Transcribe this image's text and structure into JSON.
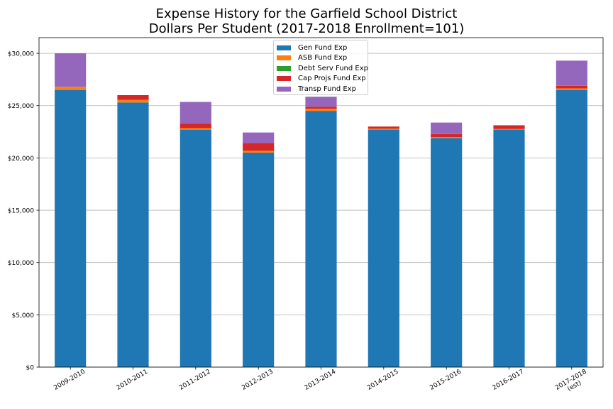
{
  "title": {
    "line1": "Expense History for the Garfield School District",
    "line2": "Dollars Per Student (2017-2018 Enrollment=101)"
  },
  "chart_data": {
    "type": "bar",
    "stacked": true,
    "categories": [
      "2009-2010",
      "2010-2011",
      "2011-2012",
      "2012-2013",
      "2013-2014",
      "2014-2015",
      "2015-2016",
      "2016-2017",
      "2017-2018"
    ],
    "category_sublabels": [
      "",
      "",
      "",
      "",
      "",
      "",
      "",
      "",
      "(est)"
    ],
    "series": [
      {
        "name": "Gen Fund Exp",
        "color": "#1f77b4",
        "values": [
          26500,
          25300,
          22700,
          20500,
          24500,
          22700,
          21900,
          22700,
          26500
        ]
      },
      {
        "name": "ASB Fund Exp",
        "color": "#ff7f0e",
        "values": [
          300,
          250,
          150,
          180,
          200,
          100,
          80,
          70,
          150
        ]
      },
      {
        "name": "Debt Serv Fund Exp",
        "color": "#2ca02c",
        "values": [
          0,
          0,
          0,
          0,
          0,
          0,
          0,
          0,
          0
        ]
      },
      {
        "name": "Cap Projs Fund Exp",
        "color": "#d62728",
        "values": [
          0,
          450,
          450,
          750,
          200,
          200,
          300,
          350,
          250
        ]
      },
      {
        "name": "Transp Fund Exp",
        "color": "#9467bd",
        "values": [
          3200,
          0,
          2050,
          1000,
          950,
          0,
          1100,
          0,
          2400
        ]
      }
    ],
    "ylim": [
      0,
      31500
    ],
    "yticks": [
      0,
      5000,
      10000,
      15000,
      20000,
      25000,
      30000
    ],
    "ytick_labels": [
      "$0",
      "$5,000",
      "$10,000",
      "$15,000",
      "$20,000",
      "$25,000",
      "$30,000"
    ],
    "xlabel": "",
    "ylabel": "",
    "grid": "y",
    "legend_position": "top-center"
  }
}
